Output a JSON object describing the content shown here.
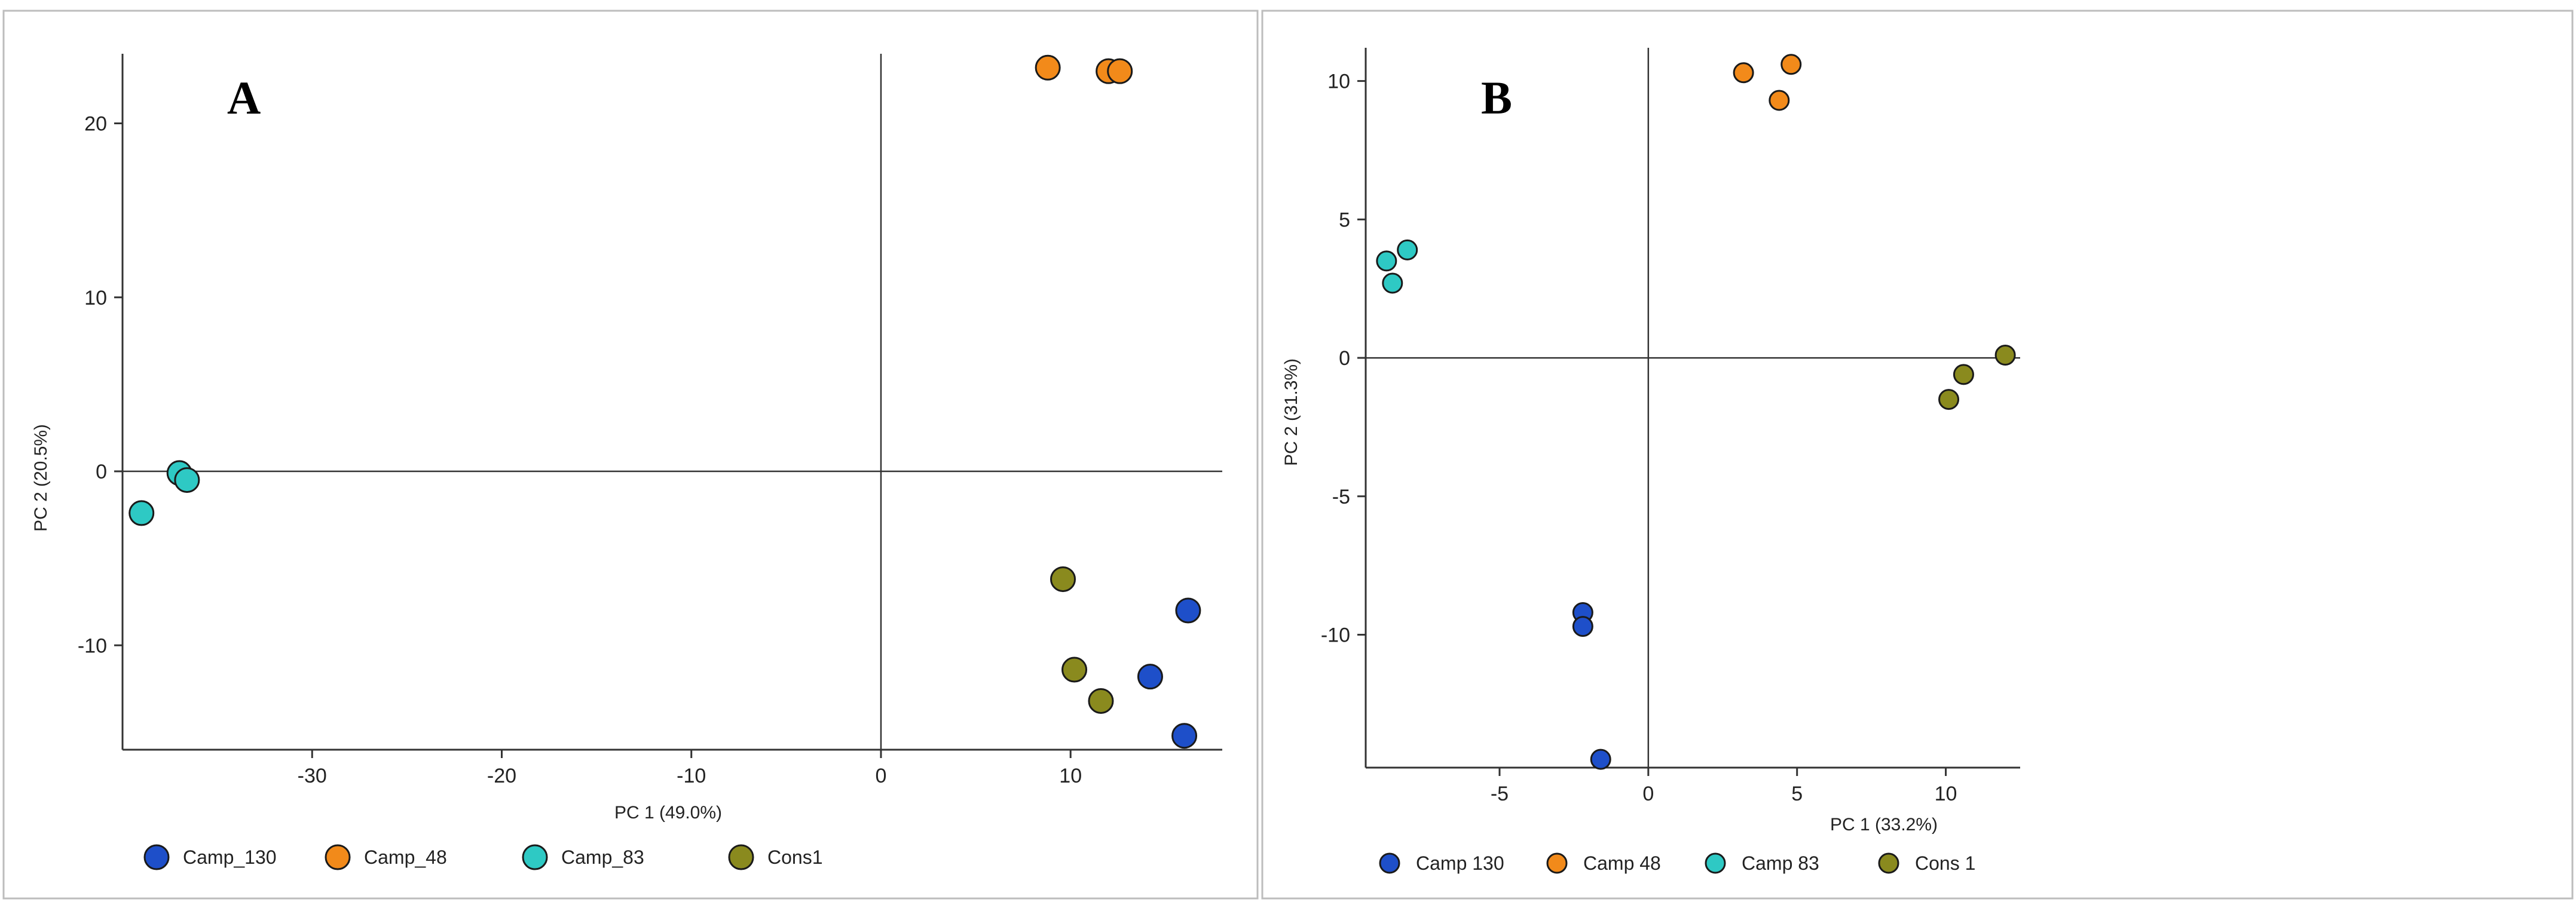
{
  "chart_data": [
    {
      "type": "scatter",
      "panel_label": "A",
      "xlabel": "PC 1 (49.0%)",
      "ylabel": "PC 2 (20.5%)",
      "xlim": [
        -40,
        18
      ],
      "ylim": [
        -16,
        24
      ],
      "xticks": [
        -30,
        -20,
        -10,
        0,
        10
      ],
      "yticks": [
        -10,
        0,
        10,
        20
      ],
      "grid": false,
      "legend_position": "bottom",
      "series": [
        {
          "name": "Camp_130",
          "color": "#1E4FC9",
          "points": [
            [
              16.2,
              -8.0
            ],
            [
              14.2,
              -11.8
            ],
            [
              16.0,
              -15.2
            ]
          ]
        },
        {
          "name": "Camp_48",
          "color": "#F28A1A",
          "points": [
            [
              8.8,
              23.2
            ],
            [
              12.0,
              23.0
            ],
            [
              12.6,
              23.0
            ]
          ]
        },
        {
          "name": "Camp_83",
          "color": "#2EC9C4",
          "points": [
            [
              -37.0,
              -0.1
            ],
            [
              -36.6,
              -0.5
            ],
            [
              -39.0,
              -2.4
            ]
          ]
        },
        {
          "name": "Cons1",
          "color": "#8A8A1E",
          "points": [
            [
              9.6,
              -6.2
            ],
            [
              10.2,
              -11.4
            ],
            [
              11.6,
              -13.2
            ]
          ]
        }
      ]
    },
    {
      "type": "scatter",
      "panel_label": "B",
      "xlabel": "PC 1 (33.2%)",
      "ylabel": "PC 2 (31.3%)",
      "xlim": [
        -9.5,
        12.5
      ],
      "ylim": [
        -14.8,
        11.2
      ],
      "xticks": [
        -5,
        0,
        5,
        10
      ],
      "yticks": [
        -10,
        -5,
        0,
        5,
        10
      ],
      "grid": false,
      "legend_position": "bottom",
      "series": [
        {
          "name": "Camp 130",
          "color": "#1E4FC9",
          "points": [
            [
              -2.2,
              -9.2
            ],
            [
              -2.2,
              -9.7
            ],
            [
              -1.6,
              -14.5
            ]
          ]
        },
        {
          "name": "Camp 48",
          "color": "#F28A1A",
          "points": [
            [
              3.2,
              10.3
            ],
            [
              4.4,
              9.3
            ],
            [
              4.8,
              10.6
            ]
          ]
        },
        {
          "name": "Camp 83",
          "color": "#2EC9C4",
          "points": [
            [
              -8.8,
              3.5
            ],
            [
              -8.6,
              2.7
            ],
            [
              -8.1,
              3.9
            ]
          ]
        },
        {
          "name": "Cons 1",
          "color": "#8A8A1E",
          "points": [
            [
              10.1,
              -1.5
            ],
            [
              10.6,
              -0.6
            ],
            [
              12.0,
              0.1
            ]
          ]
        }
      ]
    }
  ]
}
